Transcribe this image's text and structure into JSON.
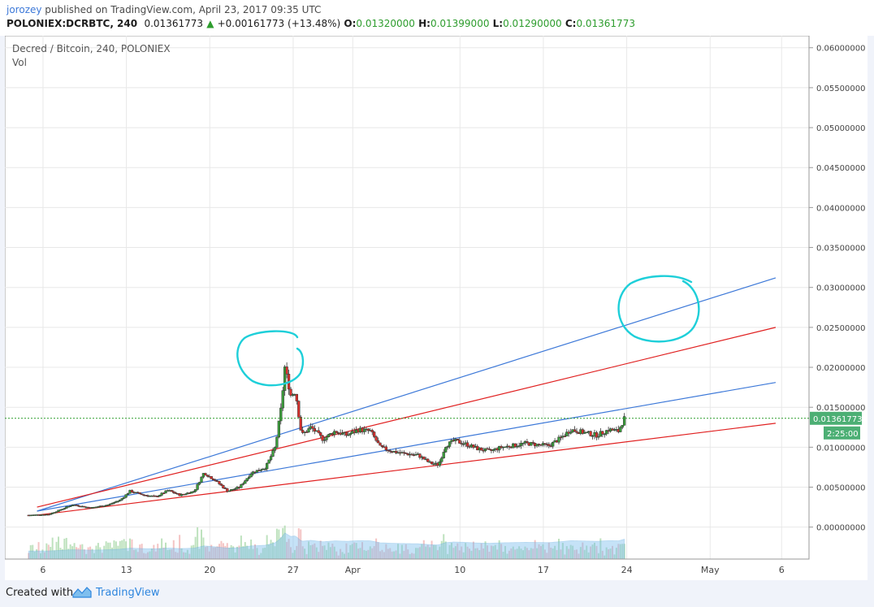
{
  "header": {
    "user": "jorozey",
    "published": " published on TradingView.com, April 23, 2017 09:35 UTC",
    "symbol": "POLONIEX:DCRBTC, 240",
    "last": "0.01361773",
    "arrow": "▲",
    "change": "+0.00161773 (+13.48%)",
    "o_label": "O:",
    "o_value": "0.01320000",
    "h_label": "H:",
    "h_value": "0.01399000",
    "l_label": "L:",
    "l_value": "0.01290000",
    "c_label": "C:",
    "c_value": "0.01361773"
  },
  "legend": {
    "title": "Decred / Bitcoin, 240, POLONIEX",
    "vol": "Vol"
  },
  "footer": {
    "created": "Created with",
    "brand": "TradingView"
  },
  "colors": {
    "up": "#3a9e3a",
    "down": "#d9302c",
    "trend_blue": "#3c78d8",
    "trend_red": "#e02020",
    "annotation": "#1ecfd9",
    "price_tag": "#4caf74",
    "volume_area": "#7fbfee"
  },
  "chart_data": {
    "type": "candlestick",
    "ylim": [
      -0.004,
      0.0615
    ],
    "y_ticks": [
      "0.06000000",
      "0.05500000",
      "0.05000000",
      "0.04500000",
      "0.04000000",
      "0.03500000",
      "0.03000000",
      "0.02500000",
      "0.02000000",
      "0.01500000",
      "0.01000000",
      "0.00500000",
      "0.00000000"
    ],
    "y_tick_values": [
      0.06,
      0.055,
      0.05,
      0.045,
      0.04,
      0.035,
      0.03,
      0.025,
      0.02,
      0.015,
      0.01,
      0.005,
      0.0
    ],
    "x_ticks": [
      "6",
      "13",
      "20",
      "27",
      "Apr",
      "10",
      "17",
      "24",
      "May",
      "6"
    ],
    "x_tick_days": [
      6,
      13,
      20,
      27,
      32,
      41,
      48,
      55,
      62,
      68
    ],
    "last_price": "0.01361773",
    "last_price_value": 0.01361773,
    "countdown": "2:25:00",
    "grid": true,
    "price_path": [
      [
        4.8,
        0.0015
      ],
      [
        6.5,
        0.0016
      ],
      [
        7.5,
        0.0022
      ],
      [
        8.5,
        0.0028
      ],
      [
        10,
        0.0024
      ],
      [
        11.5,
        0.0028
      ],
      [
        12.5,
        0.0034
      ],
      [
        13.3,
        0.0045
      ],
      [
        14.5,
        0.004
      ],
      [
        15.5,
        0.0038
      ],
      [
        16.5,
        0.0046
      ],
      [
        17.5,
        0.004
      ],
      [
        18.7,
        0.0045
      ],
      [
        19.5,
        0.0068
      ],
      [
        20.5,
        0.0058
      ],
      [
        21.5,
        0.0045
      ],
      [
        22.5,
        0.005
      ],
      [
        23.5,
        0.0068
      ],
      [
        24.7,
        0.0075
      ],
      [
        25.5,
        0.01
      ],
      [
        26.0,
        0.015
      ],
      [
        26.3,
        0.02
      ],
      [
        26.8,
        0.0165
      ],
      [
        27.2,
        0.017
      ],
      [
        27.7,
        0.0115
      ],
      [
        28.5,
        0.0125
      ],
      [
        29.5,
        0.011
      ],
      [
        30.5,
        0.012
      ],
      [
        31.5,
        0.0115
      ],
      [
        32.5,
        0.0122
      ],
      [
        33.5,
        0.012
      ],
      [
        34.3,
        0.01
      ],
      [
        35.3,
        0.0095
      ],
      [
        36.3,
        0.0092
      ],
      [
        37.5,
        0.009
      ],
      [
        38.5,
        0.008
      ],
      [
        39.2,
        0.0078
      ],
      [
        39.8,
        0.0102
      ],
      [
        40.5,
        0.0108
      ],
      [
        41.3,
        0.0105
      ],
      [
        42.5,
        0.0098
      ],
      [
        43.5,
        0.0095
      ],
      [
        44.5,
        0.01
      ],
      [
        45.5,
        0.0102
      ],
      [
        46.5,
        0.0105
      ],
      [
        47.5,
        0.0103
      ],
      [
        48.5,
        0.0102
      ],
      [
        49.5,
        0.0112
      ],
      [
        50.3,
        0.0122
      ],
      [
        51.5,
        0.0118
      ],
      [
        52.5,
        0.0115
      ],
      [
        53.5,
        0.0122
      ],
      [
        54.3,
        0.012
      ],
      [
        54.8,
        0.0136
      ]
    ],
    "trendlines": [
      {
        "color": "blue",
        "from": [
          5.5,
          0.002
        ],
        "to": [
          67.5,
          0.0312
        ]
      },
      {
        "color": "blue",
        "from": [
          5.5,
          0.002
        ],
        "to": [
          67.5,
          0.0181
        ]
      },
      {
        "color": "red",
        "from": [
          5.5,
          0.0025
        ],
        "to": [
          67.5,
          0.025
        ]
      },
      {
        "color": "red",
        "from": [
          5.5,
          0.0015
        ],
        "to": [
          67.5,
          0.013
        ]
      }
    ]
  }
}
